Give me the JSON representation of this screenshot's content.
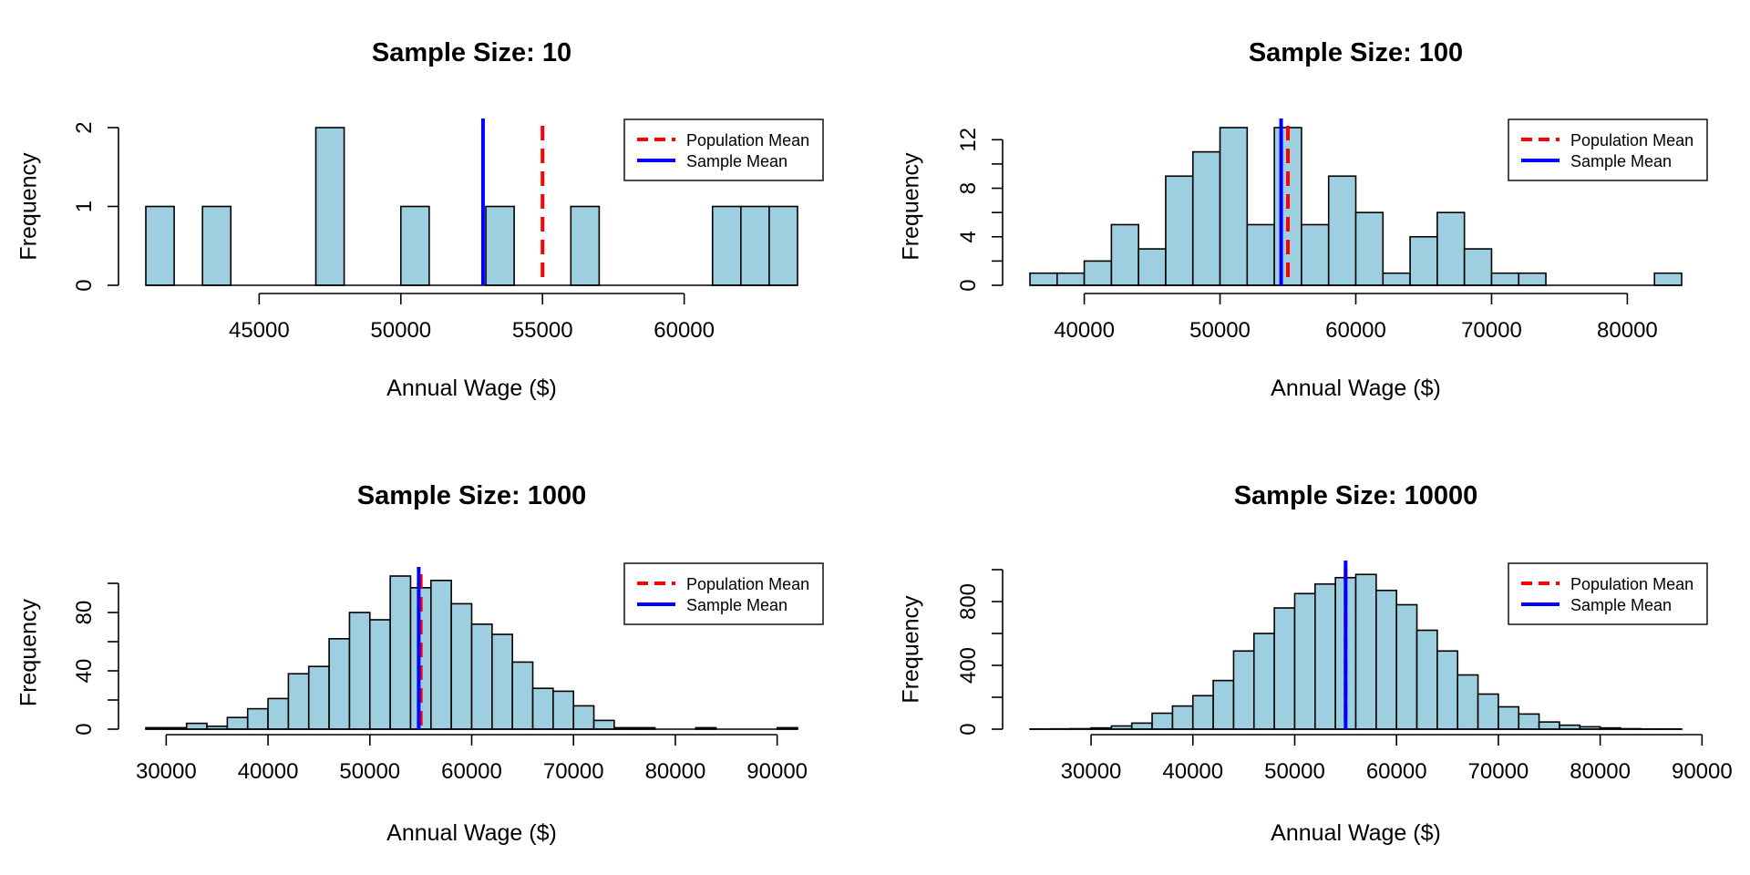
{
  "colors": {
    "bar_fill": "#9ECFE0",
    "population_mean": "#FF0000",
    "sample_mean": "#0000FF",
    "axis": "#000000"
  },
  "chart_data": [
    {
      "type": "bar",
      "title": "Sample Size: 10",
      "xlabel": "Annual Wage ($)",
      "ylabel": "Frequency",
      "bin_width": 1000,
      "bin_starts": [
        41000,
        42000,
        43000,
        44000,
        45000,
        46000,
        47000,
        48000,
        49000,
        50000,
        51000,
        52000,
        53000,
        54000,
        55000,
        56000,
        57000,
        58000,
        59000,
        60000,
        61000,
        62000,
        63000
      ],
      "values": [
        1,
        0,
        1,
        0,
        0,
        0,
        2,
        0,
        0,
        1,
        0,
        0,
        1,
        0,
        0,
        1,
        0,
        0,
        0,
        0,
        1,
        1,
        1
      ],
      "xlim": [
        41000,
        64000
      ],
      "ylim": [
        0,
        2
      ],
      "x_ticks": [
        45000,
        50000,
        55000,
        60000
      ],
      "x_tick_labels": [
        "45000",
        "50000",
        "55000",
        "60000"
      ],
      "x_axis_span": [
        45000,
        60000
      ],
      "y_ticks": [
        0,
        1,
        2
      ],
      "y_tick_labels": [
        "0",
        "1",
        "2"
      ],
      "population_mean": 55000,
      "sample_mean": 52900,
      "legend": {
        "position": "top-right",
        "entries": [
          "Population Mean",
          "Sample Mean"
        ]
      }
    },
    {
      "type": "bar",
      "title": "Sample Size: 100",
      "xlabel": "Annual Wage ($)",
      "ylabel": "Frequency",
      "bin_width": 2000,
      "bin_starts": [
        36000,
        38000,
        40000,
        42000,
        44000,
        46000,
        48000,
        50000,
        52000,
        54000,
        56000,
        58000,
        60000,
        62000,
        64000,
        66000,
        68000,
        70000,
        72000,
        74000,
        76000,
        78000,
        80000,
        82000
      ],
      "values": [
        1,
        1,
        2,
        5,
        3,
        9,
        11,
        13,
        5,
        13,
        5,
        9,
        6,
        1,
        4,
        6,
        3,
        1,
        1,
        0,
        0,
        0,
        0,
        1
      ],
      "xlim": [
        36000,
        84000
      ],
      "ylim": [
        0,
        13
      ],
      "x_ticks": [
        40000,
        50000,
        60000,
        70000,
        80000
      ],
      "x_tick_labels": [
        "40000",
        "50000",
        "60000",
        "70000",
        "80000"
      ],
      "x_axis_span": [
        40000,
        80000
      ],
      "y_ticks": [
        0,
        2,
        4,
        6,
        8,
        10,
        12
      ],
      "y_tick_labels": [
        "0",
        "",
        "4",
        "",
        "8",
        "",
        "12"
      ],
      "population_mean": 55000,
      "sample_mean": 54500,
      "legend": {
        "position": "top-right",
        "entries": [
          "Population Mean",
          "Sample Mean"
        ]
      }
    },
    {
      "type": "bar",
      "title": "Sample Size: 1000",
      "xlabel": "Annual Wage ($)",
      "ylabel": "Frequency",
      "bin_width": 2000,
      "bin_starts": [
        28000,
        30000,
        32000,
        34000,
        36000,
        38000,
        40000,
        42000,
        44000,
        46000,
        48000,
        50000,
        52000,
        54000,
        56000,
        58000,
        60000,
        62000,
        64000,
        66000,
        68000,
        70000,
        72000,
        74000,
        76000,
        78000,
        80000,
        82000,
        84000,
        86000,
        88000,
        90000
      ],
      "values": [
        1,
        1,
        4,
        2,
        8,
        14,
        21,
        38,
        43,
        62,
        80,
        75,
        105,
        97,
        102,
        86,
        72,
        65,
        46,
        28,
        26,
        16,
        6,
        1,
        1,
        0,
        0,
        1,
        0,
        0,
        0,
        1
      ],
      "xlim": [
        28000,
        92000
      ],
      "ylim": [
        0,
        105
      ],
      "x_ticks": [
        30000,
        40000,
        50000,
        60000,
        70000,
        80000,
        90000
      ],
      "x_tick_labels": [
        "30000",
        "40000",
        "50000",
        "60000",
        "70000",
        "80000",
        "90000"
      ],
      "x_axis_span": [
        30000,
        90000
      ],
      "y_ticks": [
        0,
        20,
        40,
        60,
        80,
        100
      ],
      "y_tick_labels": [
        "0",
        "",
        "40",
        "",
        "80",
        ""
      ],
      "population_mean": 55000,
      "sample_mean": 54800,
      "legend": {
        "position": "top-right",
        "entries": [
          "Population Mean",
          "Sample Mean"
        ]
      }
    },
    {
      "type": "bar",
      "title": "Sample Size: 10000",
      "xlabel": "Annual Wage ($)",
      "ylabel": "Frequency",
      "bin_width": 2000,
      "bin_starts": [
        24000,
        26000,
        28000,
        30000,
        32000,
        34000,
        36000,
        38000,
        40000,
        42000,
        44000,
        46000,
        48000,
        50000,
        52000,
        54000,
        56000,
        58000,
        60000,
        62000,
        64000,
        66000,
        68000,
        70000,
        72000,
        74000,
        76000,
        78000,
        80000,
        82000,
        84000,
        86000
      ],
      "values": [
        1,
        2,
        3,
        8,
        20,
        38,
        100,
        145,
        210,
        305,
        490,
        600,
        760,
        850,
        910,
        950,
        970,
        870,
        780,
        620,
        490,
        340,
        220,
        140,
        95,
        45,
        25,
        15,
        8,
        3,
        1,
        1
      ],
      "xlim": [
        24000,
        88000
      ],
      "ylim": [
        0,
        1000
      ],
      "x_ticks": [
        30000,
        40000,
        50000,
        60000,
        70000,
        80000,
        90000
      ],
      "x_tick_labels": [
        "30000",
        "40000",
        "50000",
        "60000",
        "70000",
        "80000",
        "90000"
      ],
      "x_axis_span": [
        30000,
        90000
      ],
      "y_ticks": [
        0,
        200,
        400,
        600,
        800,
        1000
      ],
      "y_tick_labels": [
        "0",
        "",
        "400",
        "",
        "800",
        ""
      ],
      "population_mean": 55000,
      "sample_mean": 55000,
      "legend": {
        "position": "top-right",
        "entries": [
          "Population Mean",
          "Sample Mean"
        ]
      }
    }
  ]
}
